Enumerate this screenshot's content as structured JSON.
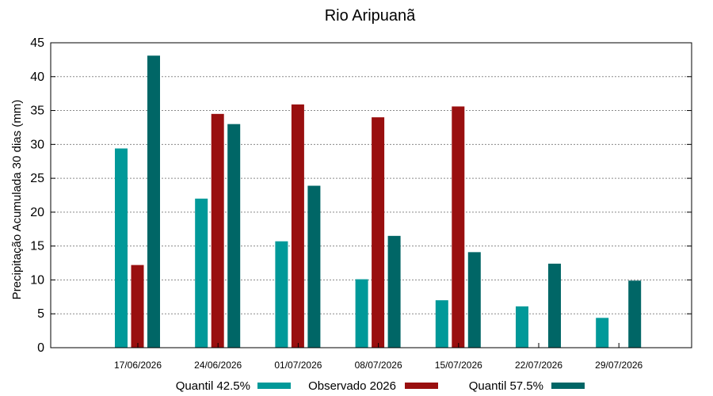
{
  "chart_data": {
    "type": "bar",
    "title": "Rio Aripuanã",
    "xlabel": "",
    "ylabel": "Precipitação Acumulada 30 dias (mm)",
    "ylim": [
      0,
      45
    ],
    "yticks": [
      0,
      5,
      10,
      15,
      20,
      25,
      30,
      35,
      40,
      45
    ],
    "grid": true,
    "legend_position": "bottom",
    "categories": [
      "17/06/2026",
      "24/06/2026",
      "01/07/2026",
      "08/07/2026",
      "15/07/2026",
      "22/07/2026",
      "29/07/2026"
    ],
    "series": [
      {
        "name": "Quantil 42.5%",
        "color": "#009999",
        "values": [
          29.4,
          22.0,
          15.7,
          10.1,
          7.0,
          6.1,
          4.4
        ]
      },
      {
        "name": "Observado 2026",
        "color": "#990f0f",
        "values": [
          12.2,
          34.5,
          35.9,
          34.0,
          35.6,
          null,
          null
        ]
      },
      {
        "name": "Quantil 57.5%",
        "color": "#006666",
        "values": [
          43.1,
          33.0,
          23.9,
          16.5,
          14.1,
          12.4,
          9.9
        ]
      }
    ]
  }
}
